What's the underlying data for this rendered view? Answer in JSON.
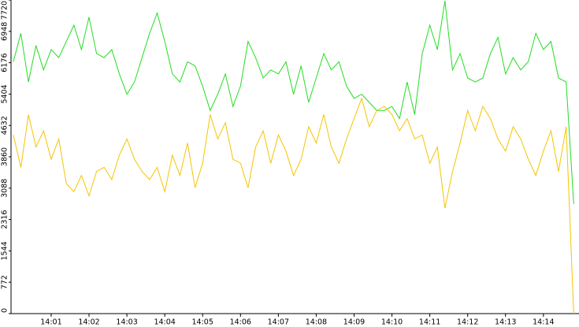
{
  "chart_data": {
    "type": "line",
    "x": [
      840.0,
      840.2,
      840.4,
      840.6,
      840.8,
      841.0,
      841.2,
      841.4,
      841.6,
      841.8,
      842.0,
      842.2,
      842.4,
      842.6,
      842.8,
      843.0,
      843.2,
      843.4,
      843.6,
      843.8,
      844.0,
      844.2,
      844.4,
      844.6,
      844.8,
      845.0,
      845.2,
      845.4,
      845.6,
      845.8,
      846.0,
      846.2,
      846.4,
      846.6,
      846.8,
      847.0,
      847.2,
      847.4,
      847.6,
      847.8,
      848.0,
      848.2,
      848.4,
      848.6,
      848.8,
      849.0,
      849.2,
      849.4,
      849.6,
      849.8,
      850.0,
      850.2,
      850.4,
      850.6,
      850.8,
      851.0,
      851.2,
      851.4,
      851.6,
      851.8,
      852.0,
      852.2,
      852.4,
      852.6,
      852.8,
      853.0,
      853.2,
      853.4,
      853.6,
      853.8,
      854.0,
      854.2,
      854.4,
      854.6,
      854.8
    ],
    "series": [
      {
        "color": "#22dd22",
        "values": [
          6200,
          6900,
          5700,
          6600,
          6000,
          6500,
          6300,
          6700,
          7100,
          6500,
          7300,
          6400,
          6300,
          6500,
          5900,
          5400,
          5700,
          6300,
          6900,
          7400,
          6700,
          5900,
          5700,
          6200,
          6100,
          5600,
          5000,
          5400,
          5900,
          5100,
          5600,
          6700,
          6300,
          5800,
          6000,
          5900,
          6200,
          5400,
          6100,
          5200,
          5800,
          6400,
          6000,
          6200,
          5600,
          5300,
          5400,
          5200,
          5000,
          5000,
          5100,
          4800,
          5700,
          4900,
          6400,
          7100,
          6500,
          7700,
          6000,
          6400,
          5800,
          5700,
          5800,
          6400,
          6800,
          5900,
          6300,
          6000,
          6200,
          6900,
          6500,
          6700,
          5800,
          5700,
          2700
        ]
      },
      {
        "color": "#f5c400",
        "values": [
          4400,
          3600,
          4900,
          4100,
          4500,
          3800,
          4300,
          3200,
          3000,
          3400,
          2900,
          3500,
          3600,
          3300,
          3900,
          4300,
          3800,
          3500,
          3300,
          3600,
          3000,
          3900,
          3400,
          4200,
          3100,
          3700,
          4900,
          4300,
          4700,
          3800,
          3700,
          3100,
          4100,
          4500,
          3700,
          4400,
          4000,
          3400,
          3800,
          4600,
          4200,
          4900,
          4100,
          3700,
          4300,
          4800,
          5300,
          4600,
          5000,
          5100,
          4900,
          4500,
          4800,
          4300,
          4400,
          3700,
          4100,
          2600,
          3500,
          4200,
          5000,
          4500,
          5100,
          4800,
          4300,
          4000,
          4600,
          4300,
          3800,
          3400,
          4000,
          4500,
          3500,
          4600,
          0
        ]
      }
    ],
    "xlim": [
      839.94,
      854.94
    ],
    "xticks": [
      {
        "value": 841,
        "label": "14:01"
      },
      {
        "value": 842,
        "label": "14:02"
      },
      {
        "value": 843,
        "label": "14:03"
      },
      {
        "value": 844,
        "label": "14:04"
      },
      {
        "value": 845,
        "label": "14:05"
      },
      {
        "value": 846,
        "label": "14:06"
      },
      {
        "value": 847,
        "label": "14:07"
      },
      {
        "value": 848,
        "label": "14:08"
      },
      {
        "value": 849,
        "label": "14:09"
      },
      {
        "value": 850,
        "label": "14:10"
      },
      {
        "value": 851,
        "label": "14:11"
      },
      {
        "value": 852,
        "label": "14:12"
      },
      {
        "value": 853,
        "label": "14:13"
      },
      {
        "value": 854,
        "label": "14:14"
      }
    ],
    "ylim": [
      0,
      7720
    ],
    "yticks": [
      0,
      772,
      1544,
      2316,
      3088,
      3860,
      4632,
      5404,
      6176,
      6948,
      7720
    ]
  }
}
